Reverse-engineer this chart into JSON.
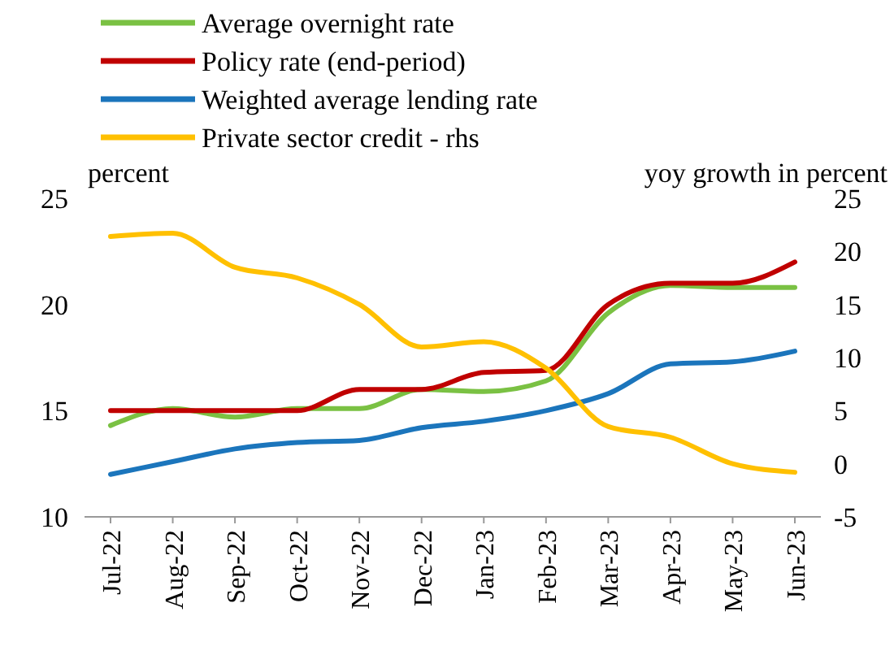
{
  "chart_data": {
    "type": "line",
    "ylabel": "percent",
    "y2label": "yoy growth in percent",
    "categories": [
      "Jul-22",
      "Aug-22",
      "Sep-22",
      "Oct-22",
      "Nov-22",
      "Dec-22",
      "Jan-23",
      "Feb-23",
      "Mar-23",
      "Apr-23",
      "May-23",
      "Jun-23"
    ],
    "series": [
      {
        "name": "Average overnight rate",
        "color": "#7ac143",
        "values": [
          14.3,
          15.1,
          14.7,
          15.1,
          15.1,
          16.0,
          15.9,
          16.4,
          19.6,
          20.9,
          20.8,
          20.8
        ]
      },
      {
        "name": "Policy rate (end-period)",
        "color": "#c00000",
        "values": [
          15,
          15,
          15,
          15,
          16.0,
          16.0,
          16.8,
          16.9,
          20.0,
          21,
          21,
          22
        ]
      },
      {
        "name": "Weighted average lending rate",
        "color": "#1b75bc",
        "values": [
          12.0,
          12.6,
          13.2,
          13.5,
          13.6,
          14.2,
          14.5,
          15.0,
          15.8,
          17.2,
          17.3,
          17.8
        ]
      },
      {
        "name": "Private sector credit - rhs",
        "color": "#ffc000",
        "axis": "y2",
        "values": [
          21.4,
          21.7,
          18.5,
          17.5,
          15,
          11,
          11.5,
          9,
          3.5,
          2.5,
          0,
          -0.8
        ]
      }
    ],
    "ylim": [
      10,
      25
    ],
    "yticks": [
      10,
      15,
      20,
      25
    ],
    "y2lim": [
      -5,
      25
    ],
    "y2ticks": [
      -5,
      0,
      5,
      10,
      15,
      20,
      25
    ],
    "legend": "top left",
    "grid": false
  }
}
